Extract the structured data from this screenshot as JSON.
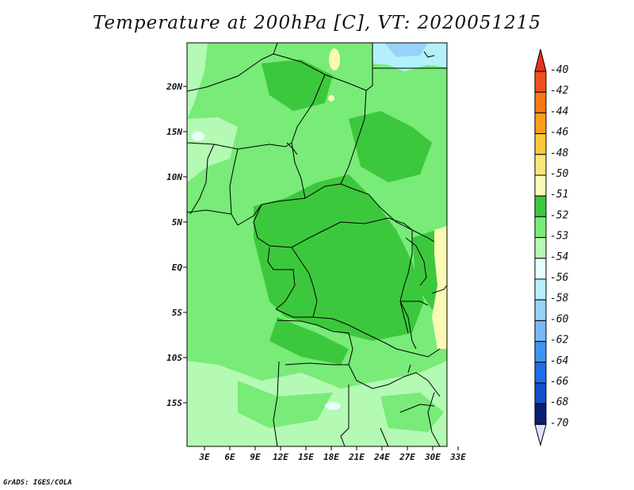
{
  "title": "Temperature at 200hPa [C], VT: 2020051215",
  "credit": "GrADS: IGES/COLA",
  "map": {
    "lat_labels": [
      {
        "text": "20N",
        "lat": 20
      },
      {
        "text": "15N",
        "lat": 15
      },
      {
        "text": "10N",
        "lat": 10
      },
      {
        "text": "5N",
        "lat": 5
      },
      {
        "text": "EQ",
        "lat": 0
      },
      {
        "text": "5S",
        "lat": -5
      },
      {
        "text": "10S",
        "lat": -10
      },
      {
        "text": "15S",
        "lat": -15
      }
    ],
    "lon_labels": [
      {
        "text": "3E",
        "lon": 3
      },
      {
        "text": "6E",
        "lon": 6
      },
      {
        "text": "9E",
        "lon": 9
      },
      {
        "text": "12E",
        "lon": 12
      },
      {
        "text": "15E",
        "lon": 15
      },
      {
        "text": "18E",
        "lon": 18
      },
      {
        "text": "21E",
        "lon": 21
      },
      {
        "text": "24E",
        "lon": 24
      },
      {
        "text": "27E",
        "lon": 27
      },
      {
        "text": "30E",
        "lon": 30
      },
      {
        "text": "33E",
        "lon": 33
      }
    ]
  },
  "colorbar": {
    "levels": [
      {
        "label": "-40",
        "color": "#e6321e"
      },
      {
        "label": "-42",
        "color": "#f0501e"
      },
      {
        "label": "-44",
        "color": "#fa7814"
      },
      {
        "label": "-46",
        "color": "#faa01e"
      },
      {
        "label": "-48",
        "color": "#fac83c"
      },
      {
        "label": "-50",
        "color": "#fae678"
      },
      {
        "label": "-51",
        "color": "#fafab4"
      },
      {
        "label": "-52",
        "color": "#3cc83c"
      },
      {
        "label": "-53",
        "color": "#78eb78"
      },
      {
        "label": "-54",
        "color": "#b4fab4"
      },
      {
        "label": "-56",
        "color": "#e6fffa"
      },
      {
        "label": "-58",
        "color": "#b4f0fa"
      },
      {
        "label": "-60",
        "color": "#96d2fa"
      },
      {
        "label": "-62",
        "color": "#78b9fa"
      },
      {
        "label": "-64",
        "color": "#3c96f0"
      },
      {
        "label": "-66",
        "color": "#1e6ee6"
      },
      {
        "label": "-68",
        "color": "#1450c8"
      },
      {
        "label": "-70",
        "color": "#0a1e78"
      }
    ],
    "top_color": "#e6321e",
    "bottom_color": "#e1e1ff"
  }
}
